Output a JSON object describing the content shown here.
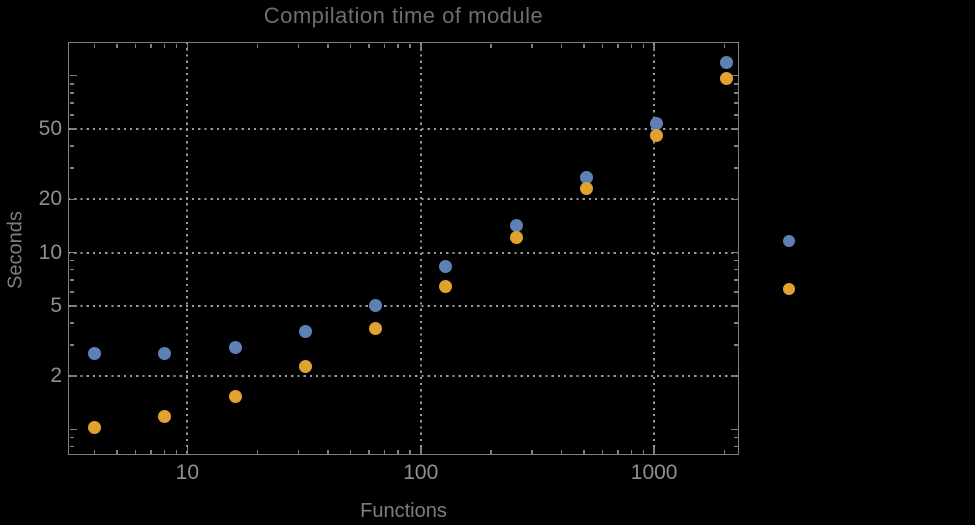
{
  "chart_data": {
    "type": "scatter",
    "title": "Compilation time of module",
    "xlabel": "Functions",
    "ylabel": "Seconds",
    "x_scale": "log",
    "y_scale": "log",
    "xlim": [
      3.08,
      2310
    ],
    "ylim": [
      0.717,
      155
    ],
    "x_ticks": [
      10,
      100,
      1000
    ],
    "x_tick_labels": [
      "10",
      "100",
      "1000"
    ],
    "y_ticks": [
      2,
      5,
      10,
      20,
      50
    ],
    "y_tick_labels": [
      "2",
      "5",
      "10",
      "20",
      "50"
    ],
    "grid": "dotted",
    "x": [
      4,
      8,
      16,
      32,
      64,
      128,
      256,
      512,
      1024,
      2048
    ],
    "series": [
      {
        "name": "blue",
        "color": "#5e81b5",
        "values": [
          2.7,
          2.7,
          2.9,
          3.6,
          5.0,
          8.3,
          14.2,
          26.5,
          54,
          118
        ]
      },
      {
        "name": "orange",
        "color": "#e2a22f",
        "values": [
          1.03,
          1.19,
          1.53,
          2.26,
          3.7,
          6.4,
          12.2,
          23,
          46,
          96
        ]
      }
    ],
    "legend": {
      "position": "right-of-plot",
      "labels_visible": false,
      "markers": [
        {
          "series": "blue",
          "color": "#5e81b5"
        },
        {
          "series": "orange",
          "color": "#e2a22f"
        }
      ]
    }
  },
  "colors": {
    "background": "#000000",
    "frame": "#7f7f7f",
    "gridlines": "#9a9a9a",
    "title_text": "#6e6e6e",
    "axis_label_text": "#7d7d7d",
    "tick_label_text": "#8f8f8f"
  }
}
